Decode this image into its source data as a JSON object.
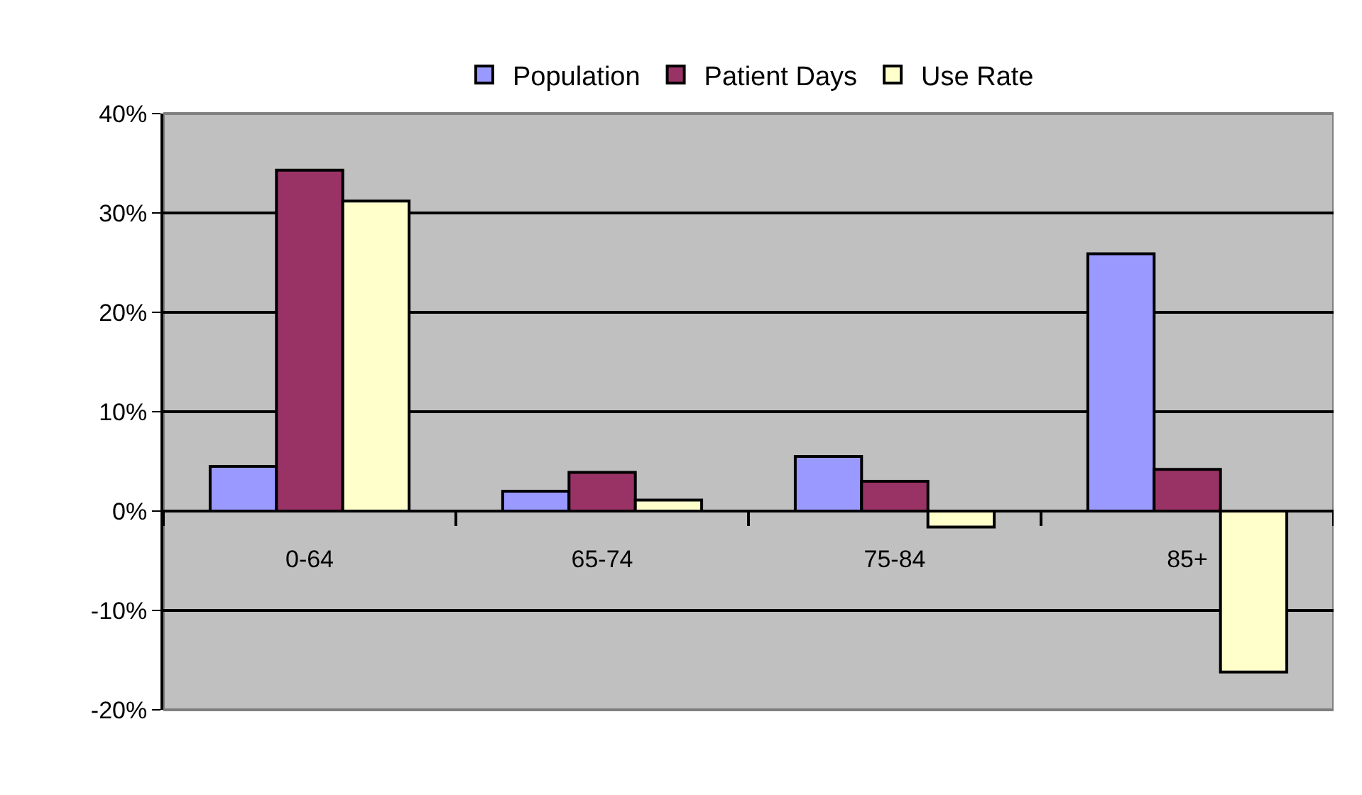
{
  "chart_data": {
    "type": "bar",
    "categories": [
      "0-64",
      "65-74",
      "75-84",
      "85+"
    ],
    "series": [
      {
        "name": "Population",
        "color": "#9999ff",
        "values": [
          4.5,
          2.0,
          5.5,
          25.9
        ]
      },
      {
        "name": "Patient Days",
        "color": "#993366",
        "values": [
          34.3,
          3.9,
          3.0,
          4.2
        ]
      },
      {
        "name": "Use Rate",
        "color": "#ffffcc",
        "values": [
          31.2,
          1.1,
          -1.6,
          -16.2
        ]
      }
    ],
    "ylim": [
      -20,
      40
    ],
    "yticks": [
      {
        "value": -20,
        "label": "-20%"
      },
      {
        "value": -10,
        "label": "-10%"
      },
      {
        "value": 0,
        "label": "0%"
      },
      {
        "value": 10,
        "label": "10%"
      },
      {
        "value": 20,
        "label": "20%"
      },
      {
        "value": 30,
        "label": "30%"
      },
      {
        "value": 40,
        "label": "40%"
      }
    ],
    "grid": "y",
    "legend": "top"
  }
}
